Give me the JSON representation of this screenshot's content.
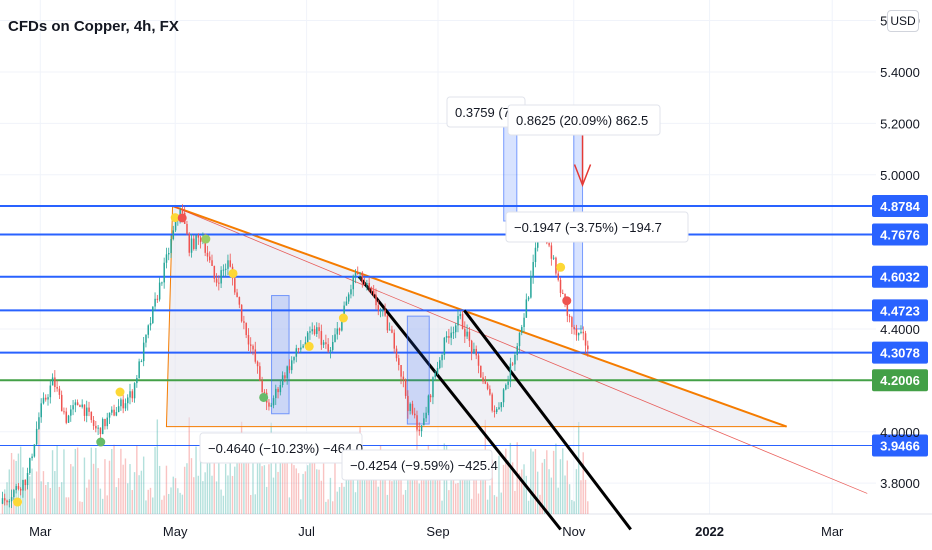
{
  "header": {
    "title": "CFDs on Copper, 4h, FX",
    "currency": "USD"
  },
  "chart_data": {
    "type": "candlestick",
    "title": "CFDs on Copper, 4h, FX",
    "xlabel": "",
    "ylabel": "USD",
    "ylim": [
      3.68,
      5.68
    ],
    "x_ticks": [
      {
        "label": "Mar",
        "bold": false
      },
      {
        "label": "May",
        "bold": false
      },
      {
        "label": "Jul",
        "bold": false
      },
      {
        "label": "Sep",
        "bold": false
      },
      {
        "label": "Nov",
        "bold": false
      },
      {
        "label": "2022",
        "bold": true
      },
      {
        "label": "Mar",
        "bold": false
      }
    ],
    "y_ticks": [
      "5.6000",
      "5.4000",
      "5.2000",
      "5.0000",
      "4.4000",
      "4.0000",
      "3.8000"
    ],
    "horizontal_levels": [
      {
        "value": 4.8784,
        "label": "4.8784",
        "color": "#2962ff"
      },
      {
        "value": 4.7676,
        "label": "4.7676",
        "color": "#2962ff"
      },
      {
        "value": 4.6032,
        "label": "4.6032",
        "color": "#2962ff"
      },
      {
        "value": 4.4723,
        "label": "4.4723",
        "color": "#2962ff"
      },
      {
        "value": 4.3078,
        "label": "4.3078",
        "color": "#2962ff"
      },
      {
        "value": 4.2006,
        "label": "4.2006",
        "color": "#43a047"
      },
      {
        "value": 3.9466,
        "label": "3.9466",
        "color": "#2962ff"
      }
    ],
    "measurements": [
      {
        "text": "0.3759 (7"
      },
      {
        "text": "0.8625 (20.09%) 862.5"
      },
      {
        "text": "−0.1947 (−3.75%) −194.7"
      },
      {
        "text": "−0.4640 (−10.23%) −464.0"
      },
      {
        "text": "−0.4254 (−9.59%) −425.4"
      }
    ],
    "price_path": [
      [
        0,
        3.72
      ],
      [
        0.03,
        3.82
      ],
      [
        0.045,
        4.08
      ],
      [
        0.06,
        4.2
      ],
      [
        0.075,
        4.05
      ],
      [
        0.09,
        4.12
      ],
      [
        0.11,
        4.0
      ],
      [
        0.13,
        4.08
      ],
      [
        0.15,
        4.15
      ],
      [
        0.165,
        4.35
      ],
      [
        0.18,
        4.55
      ],
      [
        0.19,
        4.68
      ],
      [
        0.205,
        4.88
      ],
      [
        0.215,
        4.72
      ],
      [
        0.23,
        4.76
      ],
      [
        0.245,
        4.58
      ],
      [
        0.26,
        4.66
      ],
      [
        0.275,
        4.45
      ],
      [
        0.29,
        4.28
      ],
      [
        0.305,
        4.08
      ],
      [
        0.32,
        4.2
      ],
      [
        0.34,
        4.32
      ],
      [
        0.36,
        4.4
      ],
      [
        0.375,
        4.3
      ],
      [
        0.39,
        4.45
      ],
      [
        0.405,
        4.62
      ],
      [
        0.42,
        4.55
      ],
      [
        0.435,
        4.46
      ],
      [
        0.45,
        4.34
      ],
      [
        0.465,
        4.1
      ],
      [
        0.48,
        4.0
      ],
      [
        0.495,
        4.22
      ],
      [
        0.51,
        4.38
      ],
      [
        0.525,
        4.44
      ],
      [
        0.54,
        4.3
      ],
      [
        0.555,
        4.16
      ],
      [
        0.565,
        4.07
      ],
      [
        0.58,
        4.22
      ],
      [
        0.595,
        4.42
      ],
      [
        0.605,
        4.58
      ],
      [
        0.615,
        4.8
      ],
      [
        0.625,
        4.74
      ],
      [
        0.635,
        4.6
      ],
      [
        0.645,
        4.48
      ],
      [
        0.655,
        4.38
      ],
      [
        0.665,
        4.36
      ],
      [
        0.672,
        4.32
      ]
    ]
  },
  "colors": {
    "blue_level": "#2962ff",
    "green_level": "#43a047",
    "trendline": "#f57c00",
    "channel": "#000000",
    "candle_up": "#26a69a",
    "candle_down": "#ef5350",
    "arrow_red": "#e53935",
    "triangle_fill": "#e3e4ec"
  }
}
